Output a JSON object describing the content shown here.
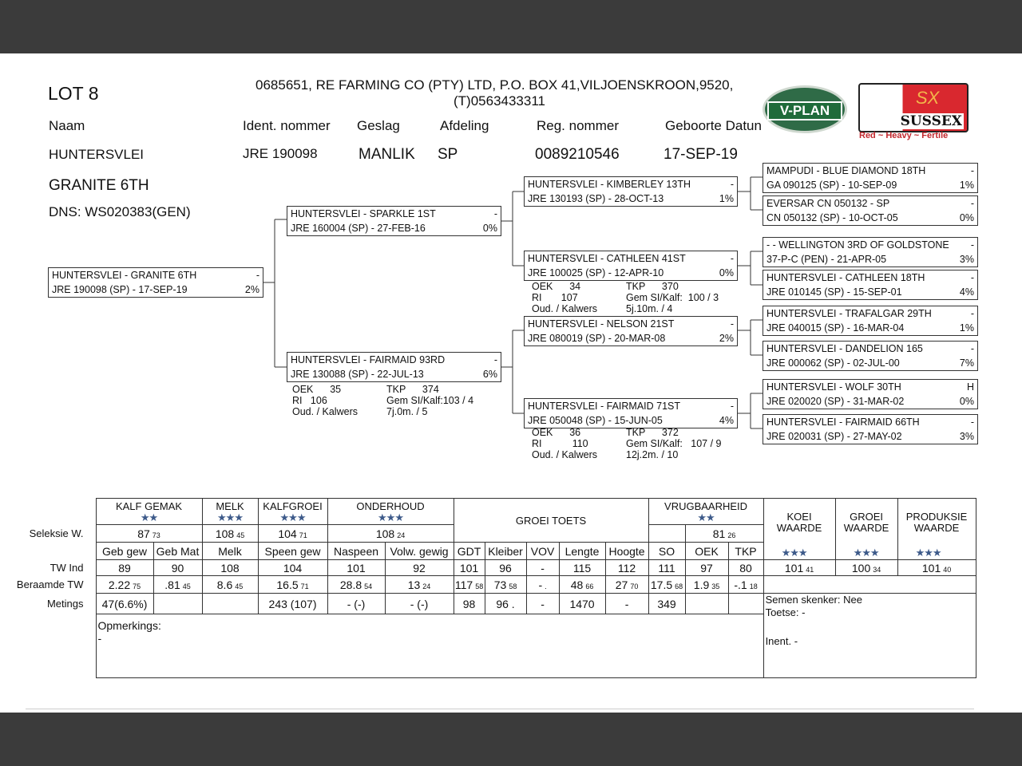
{
  "header": {
    "lot": "LOT 8",
    "owner_line1": "0685651,  RE FARMING CO (PTY) LTD, P.O. BOX 41,VILJOENSKROON,9520,",
    "owner_line2": "(T)0563433311"
  },
  "logos": {
    "vplan": "V-PLAN",
    "sussex": "SUSSEX",
    "sussex_mark": "SX",
    "sussex_tagline": "Red ~ Heavy ~ Fertile"
  },
  "fields": {
    "labels": [
      "Naam",
      "Ident. nommer",
      "Geslag",
      "Afdeling",
      "Reg. nommer",
      "Geboorte Datun"
    ],
    "name_line1": "HUNTERSVLEI",
    "name_line2": "GRANITE 6TH",
    "ident": "JRE 190098",
    "geslag": "MANLIK",
    "afdeling": "SP",
    "reg": "0089210546",
    "dob": "17-SEP-19",
    "dns": "DNS: WS020383(GEN)"
  },
  "pedigree": {
    "subject": {
      "name": "HUNTERSVLEI -  GRANITE 6TH",
      "mark": "-",
      "id": "JRE 190098 (SP) - 17-SEP-19",
      "pct": "2%"
    },
    "sire": {
      "name": "HUNTERSVLEI -  SPARKLE 1ST",
      "mark": "-",
      "id": "JRE 160004 (SP) - 27-FEB-16",
      "pct": "0%"
    },
    "dam": {
      "name": "HUNTERSVLEI -  FAIRMAID 93RD",
      "mark": "-",
      "id": "JRE 130088 (SP) - 22-JUL-13",
      "pct": "6%",
      "stats": {
        "oek": "OEK      35",
        "tkp": "TKP      374",
        "ri": "RI   106",
        "gem": "Gem SI/Kalf:103 / 4",
        "oud": "Oud. / Kalwers",
        "oud_v": "7j.0m. / 5"
      }
    },
    "ss": {
      "name": "HUNTERSVLEI -  KIMBERLEY 13TH",
      "mark": "-",
      "id": "JRE 130193 (SP) - 28-OCT-13",
      "pct": "1%"
    },
    "sd": {
      "name": "HUNTERSVLEI -  CATHLEEN 41ST",
      "mark": "-",
      "id": "JRE 100025 (SP) - 12-APR-10",
      "pct": "0%",
      "stats": {
        "oek": "OEK      34",
        "tkp": "TKP      370",
        "ri": "RI       107",
        "gem": "Gem SI/Kalf:  100 / 3",
        "oud": "Oud. / Kalwers",
        "oud_v": "5j.10m. / 4"
      }
    },
    "ds": {
      "name": "HUNTERSVLEI -  NELSON 21ST",
      "mark": "-",
      "id": "JRE 080019 (SP) - 20-MAR-08",
      "pct": "2%"
    },
    "dd": {
      "name": "HUNTERSVLEI -  FAIRMAID 71ST",
      "mark": "-",
      "id": "JRE 050048 (SP) - 15-JUN-05",
      "pct": "4%",
      "stats": {
        "oek": "OEK      36",
        "tkp": "TKP      372",
        "ri": "RI           110",
        "gem": "Gem SI/Kalf:   107 / 9",
        "oud": "Oud. / Kalwers",
        "oud_v": "12j.2m. / 10"
      }
    },
    "gen3": [
      {
        "name": "MAMPUDI -  BLUE DIAMOND 18TH",
        "mark": "-",
        "id": "GA  090125 (SP) - 10-SEP-09",
        "pct": "1%"
      },
      {
        "name": "EVERSAR CN  050132 - SP",
        "mark": "-",
        "id": "CN  050132 (SP) - 10-OCT-05",
        "pct": "0%"
      },
      {
        "name": "- -  WELLINGTON 3RD OF GOLDSTONE",
        "mark": "-",
        "id": "37-P-C       (PEN) - 21-APR-05",
        "pct": "3%"
      },
      {
        "name": "HUNTERSVLEI -  CATHLEEN 18TH",
        "mark": "-",
        "id": "JRE 010145 (SP) - 15-SEP-01",
        "pct": "4%"
      },
      {
        "name": "HUNTERSVLEI -  TRAFALGAR 29TH",
        "mark": "-",
        "id": "JRE 040015 (SP) - 16-MAR-04",
        "pct": "1%"
      },
      {
        "name": "HUNTERSVLEI -  DANDELION 165",
        "mark": "-",
        "id": "JRE 000062 (SP) - 02-JUL-00",
        "pct": "7%"
      },
      {
        "name": "HUNTERSVLEI -  WOLF 30TH",
        "mark": "H",
        "id": "JRE 020020 (SP) - 31-MAR-02",
        "pct": "0%"
      },
      {
        "name": "HUNTERSVLEI -  FAIRMAID 66TH",
        "mark": "-",
        "id": "JRE 020031 (SP) - 27-MAY-02",
        "pct": "3%"
      }
    ]
  },
  "table": {
    "row_labels": {
      "seleksie": "Seleksie W.",
      "tw_ind": "TW Ind",
      "beraamde": "Beraamde TW",
      "metings": "Metings"
    },
    "groups": [
      {
        "label": "KALF GEMAK",
        "stars": "★★",
        "value": "87",
        "acc": "73"
      },
      {
        "label": "MELK",
        "stars": "★★★",
        "value": "108",
        "acc": "45"
      },
      {
        "label": "KALFGROEI",
        "stars": "★★★",
        "value": "104",
        "acc": "71"
      },
      {
        "label": "ONDERHOUD",
        "stars": "★★★",
        "value": "108",
        "acc": "24"
      },
      {
        "label": "GROEI TOETS"
      },
      {
        "label": "VRUGBAARHEID",
        "stars": "★★",
        "value": "81",
        "acc": "26"
      }
    ],
    "indices": [
      {
        "label": "KOEI WAARDE",
        "stars": "★★★",
        "value": "101",
        "acc": "41"
      },
      {
        "label": "GROEI WAARDE",
        "stars": "★★★",
        "value": "100",
        "acc": "34"
      },
      {
        "label": "PRODUKSIE WAARDE",
        "stars": "★★★",
        "value": "101",
        "acc": "40"
      }
    ],
    "columns": [
      "Geb gew",
      "Geb Mat",
      "Melk",
      "Speen gew",
      "Naspeen",
      "Volw. gewig",
      "GDT",
      "Kleiber",
      "VOV",
      "Lengte",
      "Hoogte",
      "SO",
      "OEK",
      "TKP"
    ],
    "tw_ind": [
      "89",
      "90",
      "108",
      "104",
      "101",
      "92",
      "101",
      "96",
      "-",
      "115",
      "112",
      "111",
      "97",
      "80"
    ],
    "beraamde": [
      {
        "v": "2.22",
        "s": "75"
      },
      {
        "v": ".81",
        "s": "45"
      },
      {
        "v": "8.6",
        "s": "45"
      },
      {
        "v": "16.5",
        "s": "71"
      },
      {
        "v": "28.8",
        "s": "54"
      },
      {
        "v": "13",
        "s": "24"
      },
      {
        "v": "117",
        "s": "58"
      },
      {
        "v": "73",
        "s": "58"
      },
      {
        "v": "-",
        "s": "."
      },
      {
        "v": "48",
        "s": "66"
      },
      {
        "v": "27",
        "s": "70"
      },
      {
        "v": "17.5",
        "s": "68"
      },
      {
        "v": "1.9",
        "s": "35"
      },
      {
        "v": "-.1",
        "s": "18"
      }
    ],
    "metings": [
      "47(6.6%)",
      "",
      "",
      "243 (107)",
      "-  (-)",
      "-  (-)",
      "98",
      "96 .",
      "-",
      "1470",
      "-",
      "349",
      "",
      ""
    ],
    "opmerkings_label": "Opmerkings:",
    "opmerkings": "-",
    "semen": "Semen skenker: Nee",
    "toetse": "Toetse: -",
    "inent": "Inent. -"
  }
}
